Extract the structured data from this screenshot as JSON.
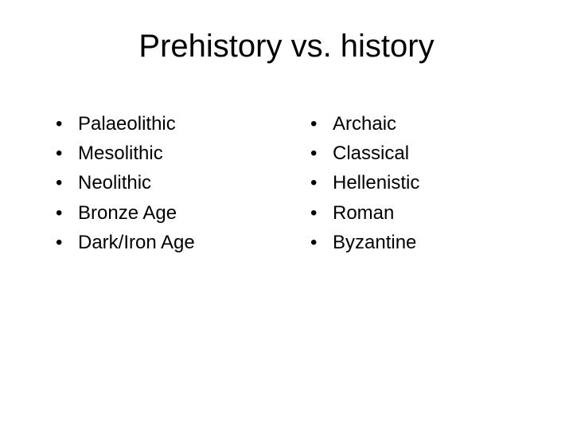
{
  "title": "Prehistory vs. history",
  "title_fontsize": 40,
  "body_fontsize": 24,
  "text_color": "#000000",
  "background_color": "#ffffff",
  "bullet_glyph": "•",
  "columns": {
    "left": {
      "items": [
        {
          "label": "Palaeolithic"
        },
        {
          "label": "Mesolithic"
        },
        {
          "label": "Neolithic"
        },
        {
          "label": "Bronze Age"
        },
        {
          "label": "Dark/Iron Age"
        }
      ]
    },
    "right": {
      "items": [
        {
          "label": "Archaic"
        },
        {
          "label": "Classical"
        },
        {
          "label": "Hellenistic"
        },
        {
          "label": "Roman"
        },
        {
          "label": "Byzantine"
        }
      ]
    }
  }
}
